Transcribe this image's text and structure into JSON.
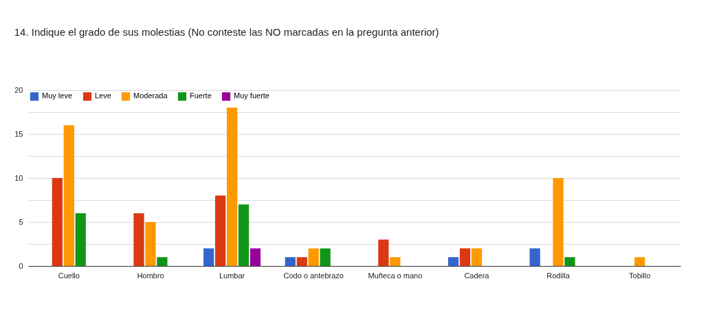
{
  "chart_data": {
    "type": "bar",
    "title": "14. Indique el grado de sus molestias (No conteste las NO marcadas en la pregunta anterior)",
    "categories": [
      "Cuello",
      "Hombro",
      "Lumbar",
      "Codo o antebrazo",
      "Muñeca o mano",
      "Cadera",
      "Rodilla",
      "Tobillo"
    ],
    "series": [
      {
        "name": "Muy leve",
        "color": "#3366cc",
        "values": [
          0,
          0,
          2,
          1,
          0,
          1,
          2,
          0
        ]
      },
      {
        "name": "Leve",
        "color": "#dc3912",
        "values": [
          10,
          6,
          8,
          1,
          3,
          2,
          0,
          0
        ]
      },
      {
        "name": "Moderada",
        "color": "#ff9900",
        "values": [
          16,
          5,
          18,
          2,
          1,
          2,
          10,
          1
        ]
      },
      {
        "name": "Fuerte",
        "color": "#109618",
        "values": [
          6,
          1,
          7,
          2,
          0,
          0,
          1,
          0
        ]
      },
      {
        "name": "Muy fuerte",
        "color": "#990099",
        "values": [
          0,
          0,
          2,
          0,
          0,
          0,
          0,
          0
        ]
      }
    ],
    "ylim": [
      0,
      20
    ],
    "yticks": [
      0,
      {
        "value": 2.5,
        "label": null
      },
      5,
      {
        "value": 7.5,
        "label": null
      },
      10,
      {
        "value": 12.5,
        "label": null
      },
      15,
      {
        "value": 17.5,
        "label": null
      },
      20
    ],
    "grid": true,
    "legend": "top left"
  }
}
